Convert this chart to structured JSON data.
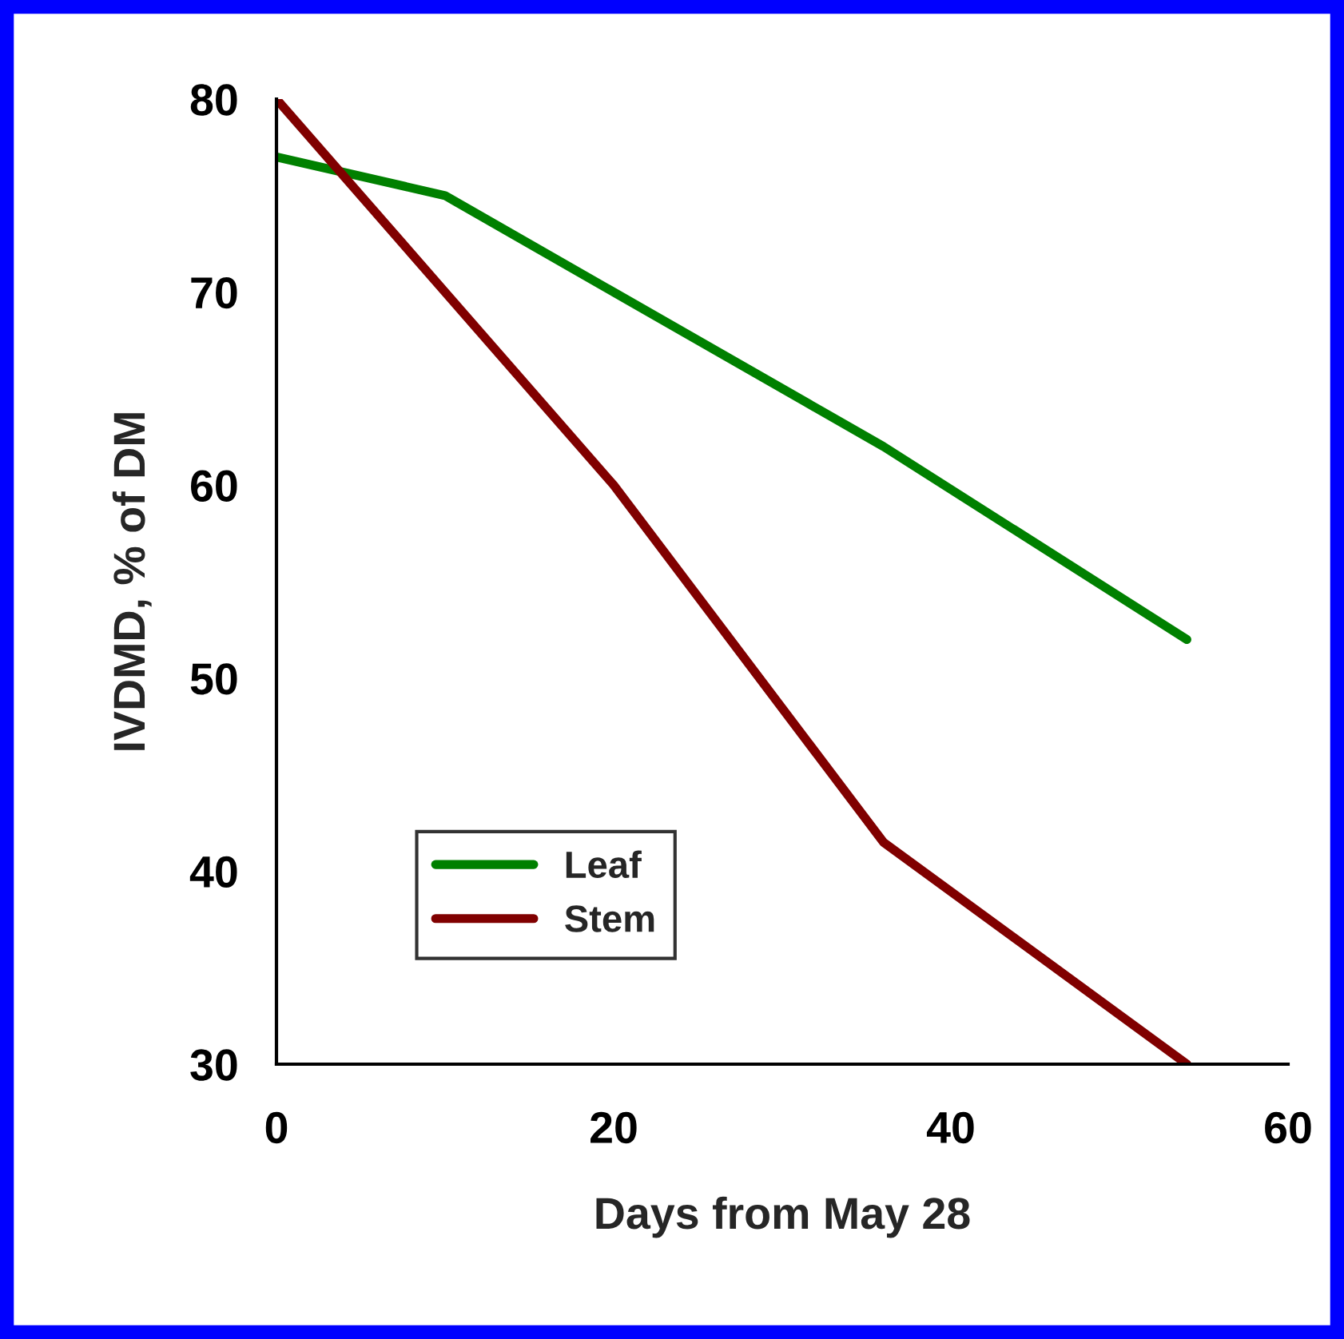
{
  "chart_data": {
    "type": "line",
    "xlabel": "Days from May 28",
    "ylabel": "IVDMD, % of DM",
    "series": [
      {
        "name": "Leaf",
        "color": "#008000",
        "x": [
          0,
          10,
          20,
          36,
          54
        ],
        "values": [
          77,
          75,
          70,
          62,
          52
        ]
      },
      {
        "name": "Stem",
        "color": "#800000",
        "x": [
          0,
          10,
          20,
          36,
          54
        ],
        "values": [
          80,
          70,
          60,
          41.5,
          30
        ]
      }
    ],
    "xlim": [
      0,
      60
    ],
    "xticks": [
      0,
      20,
      40,
      60
    ],
    "ylim": [
      30,
      80
    ],
    "yticks": [
      30,
      40,
      50,
      60,
      70,
      80
    ],
    "grid": false,
    "legend": "bottom left",
    "marker": "none",
    "line_style": "solid"
  }
}
